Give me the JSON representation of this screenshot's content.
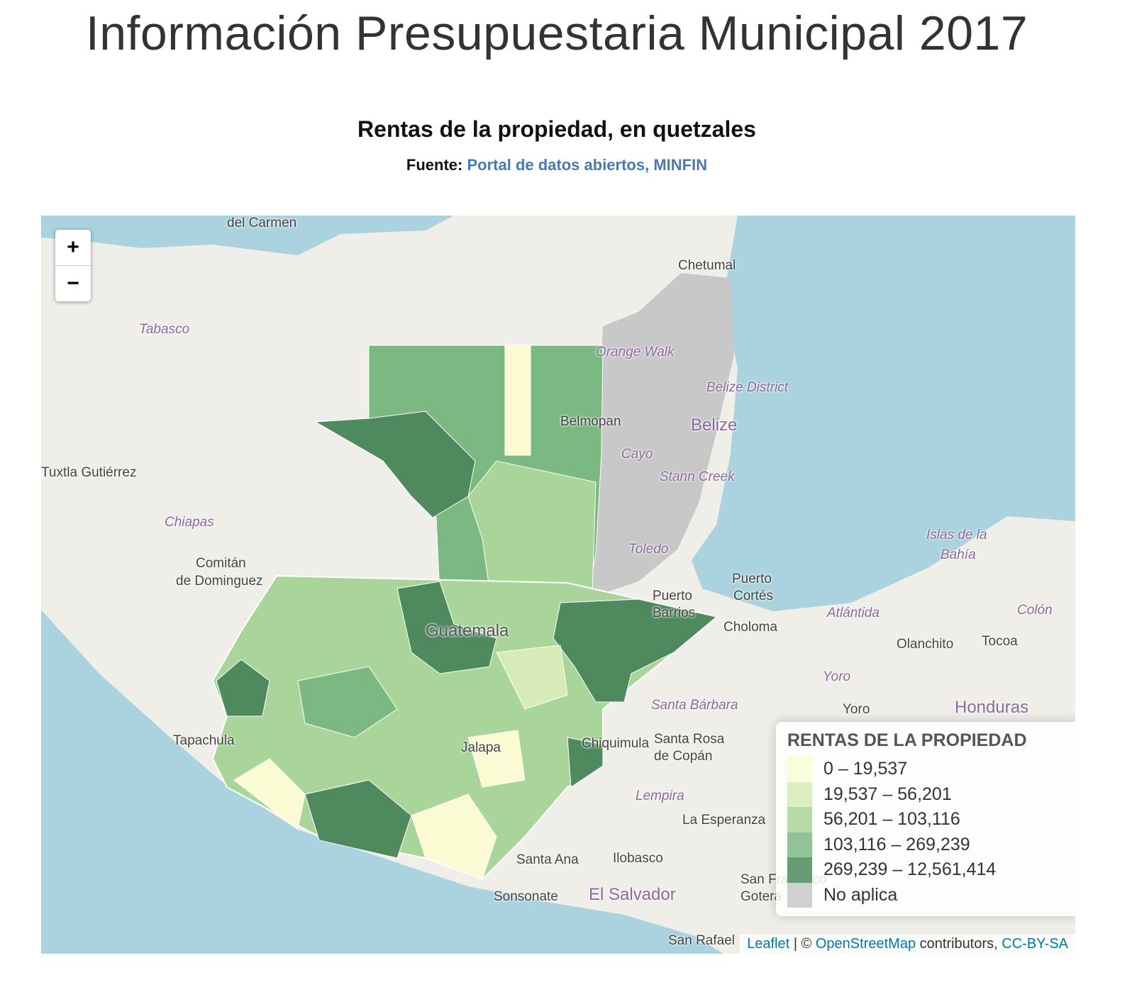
{
  "header": {
    "title": "Información Presupuestaria Municipal 2017"
  },
  "map": {
    "title": "Rentas de la propiedad, en quetzales",
    "source_label": "Fuente:",
    "source_link": "Portal de datos abiertos, MINFIN",
    "zoom": {
      "in": "+",
      "out": "−"
    },
    "legend": {
      "title": "RENTAS DE LA PROPIEDAD",
      "items": [
        {
          "label": "0 – 19,537",
          "color": "#fafbd2"
        },
        {
          "label": "19,537 – 56,201",
          "color": "#d7ebb8"
        },
        {
          "label": "56,201 – 103,116",
          "color": "#a9d59a"
        },
        {
          "label": "103,116 – 269,239",
          "color": "#7cb982"
        },
        {
          "label": "269,239 – 12,561,414",
          "color": "#4e8a5e"
        },
        {
          "label": "No aplica",
          "color": "#c8c8c8"
        }
      ]
    },
    "place_labels": [
      "del Carmen",
      "Chetumal",
      "Tabasco",
      "Orange Walk",
      "Belize District",
      "Belmopan",
      "Belize",
      "Cayo",
      "Stann Creek",
      "Tuxtla Gutiérrez",
      "Chiapas",
      "Comitán",
      "de Dominguez",
      "Toledo",
      "Islas de la",
      "Bahía",
      "Puerto",
      "Cortés",
      "Puerto",
      "Barrios",
      "Atlántida",
      "Colón",
      "Choloma",
      "Olanchito",
      "Tocoa",
      "Guatemala",
      "Yoro",
      "Yoro",
      "Honduras",
      "Santa Bárbara",
      "Tapachula",
      "Santa Rosa",
      "de Copán",
      "Lempira",
      "La Esperanza",
      "Santa Ana",
      "Ilobasco",
      "Sonsonate",
      "El Salvador",
      "San Francisco",
      "Gotera",
      "San Rafael",
      "Chiquimula",
      "Jalapa"
    ],
    "attribution": {
      "leaflet": "Leaflet",
      "separator": "| ©",
      "osm": "OpenStreetMap",
      "contributors": "contributors,",
      "license": "CC-BY-SA"
    }
  }
}
